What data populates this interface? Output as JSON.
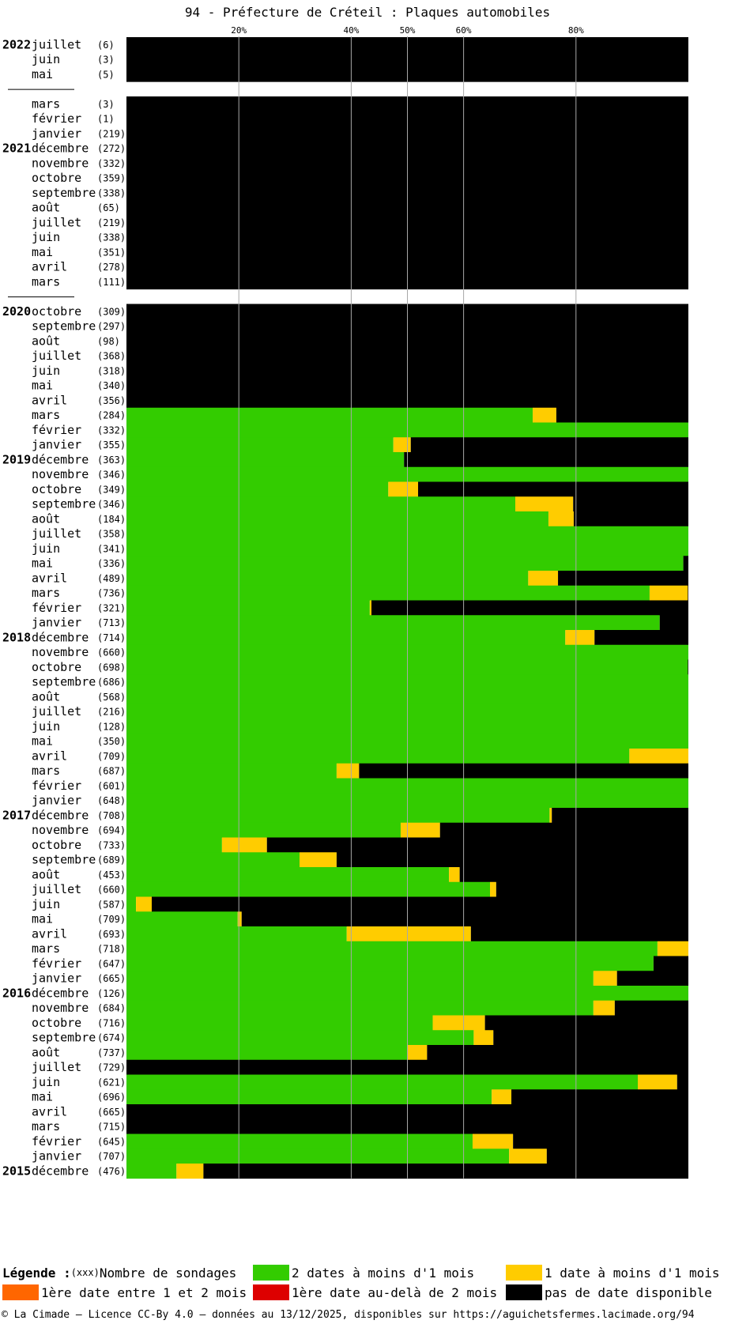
{
  "title": "94 - Préfecture de Créteil : Plaques automobiles",
  "colors": {
    "green": "#33cc00",
    "yellow": "#ffcc00",
    "orange": "#ff6600",
    "red": "#dd0000",
    "black": "#000000"
  },
  "legend": {
    "heading": "Légende :",
    "count_hint": "(xxx)",
    "count_label": "Nombre de sondages",
    "items": [
      {
        "label": "2 dates à moins d'1 mois",
        "color": "#33cc00"
      },
      {
        "label": "1 date à moins d'1 mois",
        "color": "#ffcc00"
      },
      {
        "label": "1ère date entre 1 et 2 mois",
        "color": "#ff6600"
      },
      {
        "label": "1ère date au-delà de 2 mois",
        "color": "#dd0000"
      },
      {
        "label": "pas de date disponible",
        "color": "#000000"
      }
    ]
  },
  "footer": "© La Cimade — Licence CC-By 4.0 — données au 13/12/2025, disponibles sur https://aguichetsfermes.lacimade.org/94",
  "chart_data": {
    "type": "bar",
    "orientation": "horizontal-stacked-percent",
    "x_ticks": [
      "20%",
      "40%",
      "50%",
      "60%",
      "80%"
    ],
    "x_tick_values": [
      20,
      40,
      50,
      60,
      80
    ],
    "xlim": [
      0,
      100
    ],
    "series_order": [
      "green",
      "yellow",
      "black"
    ],
    "rows": [
      {
        "year": "2022",
        "month": "juillet",
        "count": "(6)",
        "green": 0,
        "yellow": 0,
        "black": 100
      },
      {
        "year": "",
        "month": "juin",
        "count": "(3)",
        "green": 0,
        "yellow": 0,
        "black": 100
      },
      {
        "year": "",
        "month": "mai",
        "count": "(5)",
        "green": 0,
        "yellow": 0,
        "black": 100
      },
      {
        "gap": true
      },
      {
        "year": "",
        "month": "mars",
        "count": "(3)",
        "green": 0,
        "yellow": 0,
        "black": 100
      },
      {
        "year": "",
        "month": "février",
        "count": "(1)",
        "green": 0,
        "yellow": 0,
        "black": 100
      },
      {
        "year": "",
        "month": "janvier",
        "count": "(219)",
        "green": 0,
        "yellow": 0,
        "black": 100
      },
      {
        "year": "2021",
        "month": "décembre",
        "count": "(272)",
        "green": 0,
        "yellow": 0,
        "black": 100
      },
      {
        "year": "",
        "month": "novembre",
        "count": "(332)",
        "green": 0,
        "yellow": 0,
        "black": 100
      },
      {
        "year": "",
        "month": "octobre",
        "count": "(359)",
        "green": 0,
        "yellow": 0,
        "black": 100
      },
      {
        "year": "",
        "month": "septembre",
        "count": "(338)",
        "green": 0,
        "yellow": 0,
        "black": 100
      },
      {
        "year": "",
        "month": "août",
        "count": "(65)",
        "green": 0,
        "yellow": 0,
        "black": 100
      },
      {
        "year": "",
        "month": "juillet",
        "count": "(219)",
        "green": 0,
        "yellow": 0,
        "black": 100
      },
      {
        "year": "",
        "month": "juin",
        "count": "(338)",
        "green": 0,
        "yellow": 0,
        "black": 100
      },
      {
        "year": "",
        "month": "mai",
        "count": "(351)",
        "green": 0,
        "yellow": 0,
        "black": 100
      },
      {
        "year": "",
        "month": "avril",
        "count": "(278)",
        "green": 0,
        "yellow": 0,
        "black": 100
      },
      {
        "year": "",
        "month": "mars",
        "count": "(111)",
        "green": 0,
        "yellow": 0,
        "black": 100
      },
      {
        "gap": true
      },
      {
        "year": "2020",
        "month": "octobre",
        "count": "(309)",
        "green": 0,
        "yellow": 0,
        "black": 100
      },
      {
        "year": "",
        "month": "septembre",
        "count": "(297)",
        "green": 0,
        "yellow": 0,
        "black": 100
      },
      {
        "year": "",
        "month": "août",
        "count": "(98)",
        "green": 0,
        "yellow": 0,
        "black": 100
      },
      {
        "year": "",
        "month": "juillet",
        "count": "(368)",
        "green": 0,
        "yellow": 0,
        "black": 100
      },
      {
        "year": "",
        "month": "juin",
        "count": "(318)",
        "green": 0,
        "yellow": 0,
        "black": 100
      },
      {
        "year": "",
        "month": "mai",
        "count": "(340)",
        "green": 0,
        "yellow": 0,
        "black": 100
      },
      {
        "year": "",
        "month": "avril",
        "count": "(356)",
        "green": 0,
        "yellow": 0,
        "black": 100
      },
      {
        "year": "",
        "month": "mars",
        "count": "(284)",
        "green": 72.3,
        "yellow": 4.2,
        "black": 23.5
      },
      {
        "year": "",
        "month": "février",
        "count": "(332)",
        "green": 100,
        "yellow": 0,
        "black": 0
      },
      {
        "year": "",
        "month": "janvier",
        "count": "(355)",
        "green": 47.5,
        "yellow": 3.1,
        "black": 49.4
      },
      {
        "year": "2019",
        "month": "décembre",
        "count": "(363)",
        "green": 49.4,
        "yellow": 0,
        "black": 50.6
      },
      {
        "year": "",
        "month": "novembre",
        "count": "(346)",
        "green": 100,
        "yellow": 0,
        "black": 0
      },
      {
        "year": "",
        "month": "octobre",
        "count": "(349)",
        "green": 46.6,
        "yellow": 5.3,
        "black": 48.1
      },
      {
        "year": "",
        "month": "septembre",
        "count": "(346)",
        "green": 69.2,
        "yellow": 10.3,
        "black": 20.5
      },
      {
        "year": "",
        "month": "août",
        "count": "(184)",
        "green": 75.1,
        "yellow": 4.5,
        "black": 20.4
      },
      {
        "year": "",
        "month": "juillet",
        "count": "(358)",
        "green": 100,
        "yellow": 0,
        "black": 0
      },
      {
        "year": "",
        "month": "juin",
        "count": "(341)",
        "green": 100,
        "yellow": 0,
        "black": 0
      },
      {
        "year": "",
        "month": "mai",
        "count": "(336)",
        "green": 99.1,
        "yellow": 0,
        "black": 0.9
      },
      {
        "year": "",
        "month": "avril",
        "count": "(489)",
        "green": 71.5,
        "yellow": 5.3,
        "black": 23.2
      },
      {
        "year": "",
        "month": "mars",
        "count": "(736)",
        "green": 93.1,
        "yellow": 6.8,
        "black": 0.1
      },
      {
        "year": "",
        "month": "février",
        "count": "(321)",
        "green": 43.3,
        "yellow": 0.3,
        "black": 56.4
      },
      {
        "year": "",
        "month": "janvier",
        "count": "(713)",
        "green": 94.9,
        "yellow": 0,
        "black": 5.1
      },
      {
        "year": "2018",
        "month": "décembre",
        "count": "(714)",
        "green": 78.1,
        "yellow": 5.2,
        "black": 16.7
      },
      {
        "year": "",
        "month": "novembre",
        "count": "(660)",
        "green": 100,
        "yellow": 0,
        "black": 0
      },
      {
        "year": "",
        "month": "octobre",
        "count": "(698)",
        "green": 99.9,
        "yellow": 0,
        "black": 0.1
      },
      {
        "year": "",
        "month": "septembre",
        "count": "(686)",
        "green": 100,
        "yellow": 0,
        "black": 0
      },
      {
        "year": "",
        "month": "août",
        "count": "(568)",
        "green": 100,
        "yellow": 0,
        "black": 0
      },
      {
        "year": "",
        "month": "juillet",
        "count": "(216)",
        "green": 100,
        "yellow": 0,
        "black": 0
      },
      {
        "year": "",
        "month": "juin",
        "count": "(128)",
        "green": 100,
        "yellow": 0,
        "black": 0
      },
      {
        "year": "",
        "month": "mai",
        "count": "(350)",
        "green": 100,
        "yellow": 0,
        "black": 0
      },
      {
        "year": "",
        "month": "avril",
        "count": "(709)",
        "green": 89.5,
        "yellow": 10.5,
        "black": 0
      },
      {
        "year": "",
        "month": "mars",
        "count": "(687)",
        "green": 37.4,
        "yellow": 4.0,
        "black": 58.6
      },
      {
        "year": "",
        "month": "février",
        "count": "(601)",
        "green": 100,
        "yellow": 0,
        "black": 0
      },
      {
        "year": "",
        "month": "janvier",
        "count": "(648)",
        "green": 100,
        "yellow": 0,
        "black": 0
      },
      {
        "year": "2017",
        "month": "décembre",
        "count": "(708)",
        "green": 75.3,
        "yellow": 0.4,
        "black": 24.3
      },
      {
        "year": "",
        "month": "novembre",
        "count": "(694)",
        "green": 48.8,
        "yellow": 7.0,
        "black": 44.2
      },
      {
        "year": "",
        "month": "octobre",
        "count": "(733)",
        "green": 17.0,
        "yellow": 8.0,
        "black": 75.0
      },
      {
        "year": "",
        "month": "septembre",
        "count": "(689)",
        "green": 30.8,
        "yellow": 6.6,
        "black": 62.6
      },
      {
        "year": "",
        "month": "août",
        "count": "(453)",
        "green": 57.4,
        "yellow": 1.9,
        "black": 40.7
      },
      {
        "year": "",
        "month": "juillet",
        "count": "(660)",
        "green": 64.7,
        "yellow": 1.1,
        "black": 34.2
      },
      {
        "year": "",
        "month": "juin",
        "count": "(587)",
        "green": 1.7,
        "yellow": 2.8,
        "black": 95.5
      },
      {
        "year": "",
        "month": "mai",
        "count": "(709)",
        "green": 19.8,
        "yellow": 0.7,
        "black": 79.5
      },
      {
        "year": "",
        "month": "avril",
        "count": "(693)",
        "green": 39.2,
        "yellow": 22.1,
        "black": 38.7
      },
      {
        "year": "",
        "month": "mars",
        "count": "(718)",
        "green": 94.5,
        "yellow": 5.5,
        "black": 0
      },
      {
        "year": "",
        "month": "février",
        "count": "(647)",
        "green": 93.8,
        "yellow": 0,
        "black": 6.2
      },
      {
        "year": "",
        "month": "janvier",
        "count": "(665)",
        "green": 83.1,
        "yellow": 4.2,
        "black": 12.7
      },
      {
        "year": "2016",
        "month": "décembre",
        "count": "(126)",
        "green": 100,
        "yellow": 0,
        "black": 0
      },
      {
        "year": "",
        "month": "novembre",
        "count": "(684)",
        "green": 83.1,
        "yellow": 3.8,
        "black": 13.1
      },
      {
        "year": "",
        "month": "octobre",
        "count": "(716)",
        "green": 54.5,
        "yellow": 9.3,
        "black": 36.2
      },
      {
        "year": "",
        "month": "septembre",
        "count": "(674)",
        "green": 61.8,
        "yellow": 3.5,
        "black": 34.7
      },
      {
        "year": "",
        "month": "août",
        "count": "(737)",
        "green": 50.0,
        "yellow": 3.5,
        "black": 46.5
      },
      {
        "year": "",
        "month": "juillet",
        "count": "(729)",
        "green": 0,
        "yellow": 0,
        "black": 100
      },
      {
        "year": "",
        "month": "juin",
        "count": "(621)",
        "green": 91.0,
        "yellow": 7.0,
        "black": 2.0
      },
      {
        "year": "",
        "month": "mai",
        "count": "(696)",
        "green": 65.0,
        "yellow": 3.5,
        "black": 31.5
      },
      {
        "year": "",
        "month": "avril",
        "count": "(665)",
        "green": 0,
        "yellow": 0,
        "black": 100
      },
      {
        "year": "",
        "month": "mars",
        "count": "(715)",
        "green": 0,
        "yellow": 0,
        "black": 100
      },
      {
        "year": "",
        "month": "février",
        "count": "(645)",
        "green": 61.6,
        "yellow": 7.2,
        "black": 31.2
      },
      {
        "year": "",
        "month": "janvier",
        "count": "(707)",
        "green": 68.1,
        "yellow": 6.7,
        "black": 25.2
      },
      {
        "year": "2015",
        "month": "décembre",
        "count": "(476)",
        "green": 8.9,
        "yellow": 4.8,
        "black": 86.3
      }
    ]
  }
}
